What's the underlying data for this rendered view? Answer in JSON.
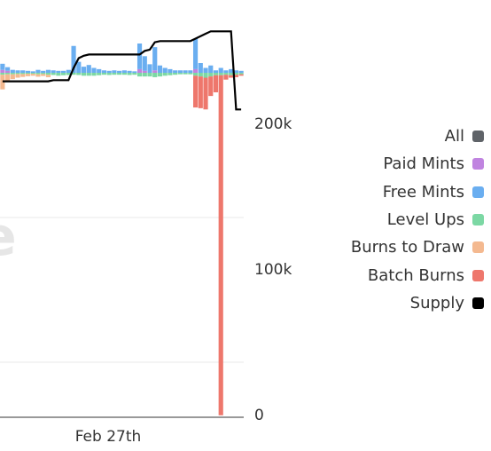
{
  "watermark_text": "e",
  "chart_data": {
    "type": "bar",
    "stacked": true,
    "x_label_tick": "Feb 27th",
    "y_ticks": [
      "200k",
      "100k",
      "0"
    ],
    "y_tick_values": [
      200000,
      100000,
      0
    ],
    "ylim": [
      -235000,
      50000
    ],
    "grid": true,
    "legend_position": "right",
    "series": [
      {
        "name": "All",
        "color": "#5f6368"
      },
      {
        "name": "Paid Mints",
        "color": "#c084e0",
        "values": [
          1200,
          800,
          0,
          0,
          0,
          0,
          0,
          0,
          0,
          0,
          0,
          0,
          0,
          0,
          0,
          0,
          0,
          0,
          0,
          0,
          0,
          0,
          0,
          0,
          0,
          0,
          0,
          1500,
          800,
          0,
          1000,
          0,
          0,
          0,
          0,
          0,
          0,
          0,
          1500,
          0,
          0,
          0,
          0,
          0,
          0,
          0,
          0,
          0
        ]
      },
      {
        "name": "Free Mints",
        "color": "#6aaef0",
        "values": [
          2500,
          1500,
          1200,
          1000,
          1000,
          800,
          600,
          1200,
          800,
          1200,
          1000,
          800,
          800,
          1200,
          11000,
          4500,
          2500,
          3200,
          2000,
          1500,
          1000,
          800,
          1000,
          800,
          1000,
          800,
          600,
          10500,
          6000,
          3500,
          9500,
          3000,
          2000,
          1500,
          1000,
          1000,
          1000,
          1000,
          12500,
          4000,
          2000,
          3000,
          1000,
          2000,
          1000,
          1500,
          1000,
          800
        ]
      },
      {
        "name": "Level Ups",
        "color": "#7cd8a4",
        "values": [
          -800,
          -600,
          -600,
          -500,
          -500,
          -400,
          -400,
          -600,
          -500,
          -800,
          -900,
          -1200,
          -1000,
          -900,
          -800,
          -900,
          -1200,
          -1200,
          -1200,
          -1000,
          -800,
          -900,
          -800,
          -800,
          -800,
          -900,
          -800,
          -1500,
          -1500,
          -1500,
          -1800,
          -1500,
          -1200,
          -1000,
          -800,
          -600,
          -600,
          -600,
          -1200,
          -1500,
          -2000,
          -1500,
          -1000,
          -1000,
          -800,
          -1000,
          -800,
          -600
        ]
      },
      {
        "name": "Burns to Draw",
        "color": "#f4b990",
        "values": [
          -6000,
          -3000,
          -2000,
          -1500,
          -1200,
          -1000,
          -800,
          -1000,
          -800,
          -1000,
          0,
          0,
          0,
          0,
          0,
          0,
          0,
          0,
          0,
          0,
          0,
          0,
          0,
          0,
          0,
          0,
          0,
          0,
          0,
          0,
          0,
          0,
          0,
          0,
          0,
          0,
          0,
          0,
          0,
          0,
          0,
          0,
          0,
          0,
          0,
          0,
          0,
          0
        ]
      },
      {
        "name": "Batch Burns",
        "color": "#ee776c",
        "values": [
          0,
          0,
          0,
          0,
          0,
          0,
          0,
          0,
          0,
          0,
          0,
          0,
          0,
          0,
          0,
          0,
          0,
          0,
          0,
          0,
          0,
          0,
          0,
          0,
          0,
          0,
          0,
          0,
          0,
          0,
          0,
          0,
          0,
          0,
          0,
          0,
          0,
          0,
          -13000,
          -13000,
          -13000,
          -8000,
          -7000,
          -230000,
          -2000,
          -1000,
          -1000,
          -600
        ]
      },
      {
        "name": "Supply",
        "color": "#000000",
        "values": [
          -3500,
          -3500,
          -3500,
          -3500,
          -3500,
          -3500,
          -3500,
          -3500,
          -3500,
          -3500,
          -3000,
          -3000,
          -3000,
          -3000,
          2000,
          6000,
          7000,
          7500,
          7500,
          7500,
          7500,
          7500,
          7500,
          7500,
          7500,
          7500,
          7500,
          7500,
          9000,
          9500,
          12500,
          13000,
          13000,
          13000,
          13000,
          13000,
          13000,
          13000,
          14000,
          15000,
          16000,
          17000,
          17000,
          17000,
          17000,
          17000,
          -15000,
          -15000
        ]
      }
    ],
    "bar_bin_count": 48
  }
}
